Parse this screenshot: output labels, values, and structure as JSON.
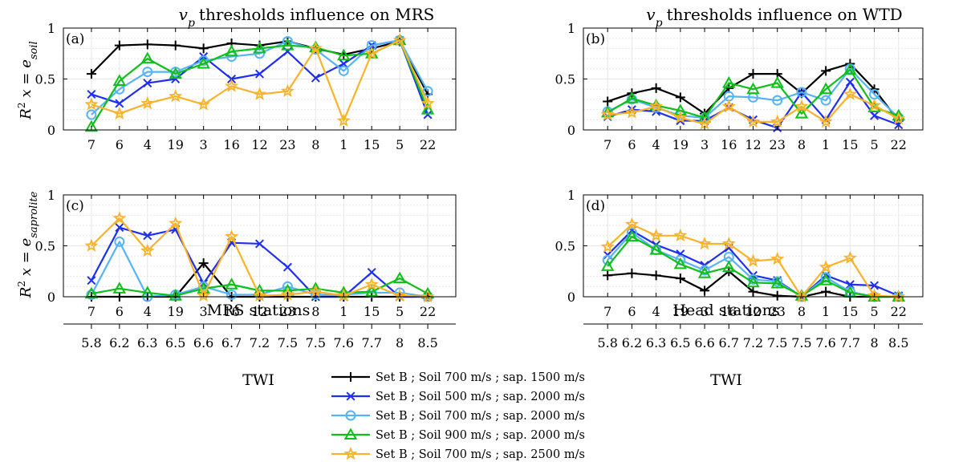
{
  "colors": {
    "series": [
      "#000000",
      "#1f2ff0",
      "#56b4f5",
      "#0fbf1a",
      "#f9b32b"
    ],
    "grid": "#e6e6e6"
  },
  "titles": {
    "left": "thresholds influence on MRS",
    "right": "thresholds influence on WTD",
    "vp_base": "v",
    "vp_sub": "p"
  },
  "ylabels": {
    "r2": "R",
    "sup": "2",
    "x_eq": "x = e",
    "soil_sub": "soil",
    "sap_sub": "saprolite"
  },
  "xlabels": {
    "left_stations": "MRS stations",
    "right_stations": "Head stations",
    "twi": "TWI"
  },
  "chart_data": [
    {
      "id": "a",
      "type": "line",
      "label": "(a)",
      "categories": [
        "7",
        "6",
        "4",
        "19",
        "3",
        "16",
        "12",
        "23",
        "8",
        "1",
        "15",
        "5",
        "22"
      ],
      "ylim": [
        0,
        1
      ],
      "yticks": [
        "0",
        "0.5",
        "1"
      ],
      "grid": true,
      "series": [
        {
          "marker": "plus",
          "values": [
            0.55,
            0.83,
            0.84,
            0.83,
            0.8,
            0.85,
            0.83,
            0.87,
            0.8,
            0.74,
            0.8,
            0.87,
            0.35
          ]
        },
        {
          "marker": "x",
          "values": [
            0.35,
            0.26,
            0.46,
            0.5,
            0.72,
            0.5,
            0.55,
            0.77,
            0.51,
            0.65,
            0.83,
            0.88,
            0.15
          ]
        },
        {
          "marker": "circle",
          "values": [
            0.15,
            0.4,
            0.57,
            0.57,
            0.68,
            0.72,
            0.75,
            0.87,
            0.79,
            0.58,
            0.83,
            0.88,
            0.38
          ]
        },
        {
          "marker": "triangle",
          "values": [
            0.03,
            0.48,
            0.7,
            0.55,
            0.65,
            0.77,
            0.8,
            0.83,
            0.81,
            0.73,
            0.75,
            0.88,
            0.2
          ]
        },
        {
          "marker": "star",
          "values": [
            0.25,
            0.16,
            0.26,
            0.33,
            0.25,
            0.43,
            0.35,
            0.38,
            0.8,
            0.09,
            0.75,
            0.88,
            0.26
          ]
        }
      ]
    },
    {
      "id": "b",
      "type": "line",
      "label": "(b)",
      "categories": [
        "7",
        "6",
        "4",
        "19",
        "3",
        "16",
        "12",
        "23",
        "8",
        "1",
        "15",
        "5",
        "22"
      ],
      "ylim": [
        0,
        1
      ],
      "yticks": [
        "0",
        "0.5",
        "1"
      ],
      "grid": true,
      "series": [
        {
          "marker": "plus",
          "values": [
            0.28,
            0.36,
            0.41,
            0.32,
            0.16,
            0.41,
            0.55,
            0.55,
            0.36,
            0.58,
            0.65,
            0.4,
            0.09
          ]
        },
        {
          "marker": "x",
          "values": [
            0.13,
            0.2,
            0.18,
            0.09,
            0.09,
            0.22,
            0.1,
            0.02,
            0.37,
            0.1,
            0.47,
            0.14,
            0.05
          ]
        },
        {
          "marker": "circle",
          "values": [
            0.18,
            0.3,
            0.22,
            0.14,
            0.12,
            0.33,
            0.32,
            0.29,
            0.37,
            0.29,
            0.6,
            0.35,
            0.12
          ]
        },
        {
          "marker": "triangle",
          "values": [
            0.17,
            0.31,
            0.24,
            0.19,
            0.12,
            0.46,
            0.4,
            0.46,
            0.16,
            0.4,
            0.59,
            0.22,
            0.14
          ]
        },
        {
          "marker": "star",
          "values": [
            0.15,
            0.17,
            0.23,
            0.12,
            0.06,
            0.23,
            0.08,
            0.08,
            0.23,
            0.08,
            0.35,
            0.24,
            0.11
          ]
        }
      ]
    },
    {
      "id": "c",
      "type": "line",
      "label": "(c)",
      "categories": [
        "7",
        "6",
        "4",
        "19",
        "3",
        "16",
        "12",
        "23",
        "8",
        "1",
        "15",
        "5",
        "22"
      ],
      "ylim": [
        0,
        1
      ],
      "yticks": [
        "0",
        "0.5",
        "1"
      ],
      "grid": true,
      "series": [
        {
          "marker": "plus",
          "values": [
            0.0,
            0.0,
            0.0,
            0.0,
            0.33,
            0.0,
            0.0,
            0.0,
            0.0,
            0.0,
            0.0,
            0.0,
            0.0
          ]
        },
        {
          "marker": "x",
          "values": [
            0.16,
            0.68,
            0.6,
            0.66,
            0.13,
            0.53,
            0.52,
            0.29,
            0.0,
            0.0,
            0.24,
            0.0,
            0.0
          ]
        },
        {
          "marker": "circle",
          "values": [
            0.02,
            0.54,
            0.0,
            0.02,
            0.1,
            0.02,
            0.02,
            0.1,
            0.02,
            0.02,
            0.04,
            0.04,
            0.0
          ]
        },
        {
          "marker": "triangle",
          "values": [
            0.03,
            0.08,
            0.04,
            0.01,
            0.08,
            0.12,
            0.06,
            0.06,
            0.08,
            0.04,
            0.05,
            0.18,
            0.03
          ]
        },
        {
          "marker": "star",
          "values": [
            0.5,
            0.77,
            0.45,
            0.72,
            0.01,
            0.59,
            0.01,
            0.02,
            0.05,
            0.01,
            0.12,
            0.01,
            0.0
          ]
        }
      ]
    },
    {
      "id": "d",
      "type": "line",
      "label": "(d)",
      "categories": [
        "7",
        "6",
        "4",
        "19",
        "3",
        "16",
        "12",
        "23",
        "8",
        "1",
        "15",
        "5",
        "22"
      ],
      "ylim": [
        0,
        1
      ],
      "yticks": [
        "0",
        "0.5",
        "1"
      ],
      "grid": true,
      "series": [
        {
          "marker": "plus",
          "values": [
            0.21,
            0.23,
            0.21,
            0.18,
            0.06,
            0.25,
            0.05,
            0.01,
            0.0,
            0.05,
            0.0,
            0.0,
            0.0
          ]
        },
        {
          "marker": "x",
          "values": [
            0.41,
            0.65,
            0.51,
            0.42,
            0.31,
            0.48,
            0.21,
            0.16,
            0.0,
            0.21,
            0.12,
            0.11,
            0.01
          ]
        },
        {
          "marker": "circle",
          "values": [
            0.36,
            0.63,
            0.46,
            0.36,
            0.26,
            0.39,
            0.17,
            0.15,
            0.0,
            0.19,
            0.05,
            0.0,
            0.0
          ]
        },
        {
          "marker": "triangle",
          "values": [
            0.3,
            0.59,
            0.46,
            0.32,
            0.23,
            0.29,
            0.14,
            0.13,
            0.01,
            0.16,
            0.04,
            0.0,
            0.0
          ]
        },
        {
          "marker": "star",
          "values": [
            0.49,
            0.71,
            0.6,
            0.6,
            0.52,
            0.52,
            0.35,
            0.37,
            0.0,
            0.29,
            0.38,
            0.01,
            0.0
          ]
        }
      ]
    }
  ],
  "twi_ticks": [
    "5.8",
    "6.2",
    "6.3",
    "6.5",
    "6.6",
    "6.7",
    "7.2",
    "7.5",
    "7.5",
    "7.6",
    "7.7",
    "8",
    "8.5"
  ],
  "legend": [
    "Set B ; Soil 700 m/s ; sap. 1500 m/s",
    "Set B ; Soil 500 m/s ; sap. 2000 m/s",
    "Set B ; Soil 700 m/s ; sap. 2000 m/s",
    "Set B ; Soil 900 m/s ; sap. 2000 m/s",
    "Set B ; Soil 700 m/s ; sap. 2500 m/s"
  ]
}
